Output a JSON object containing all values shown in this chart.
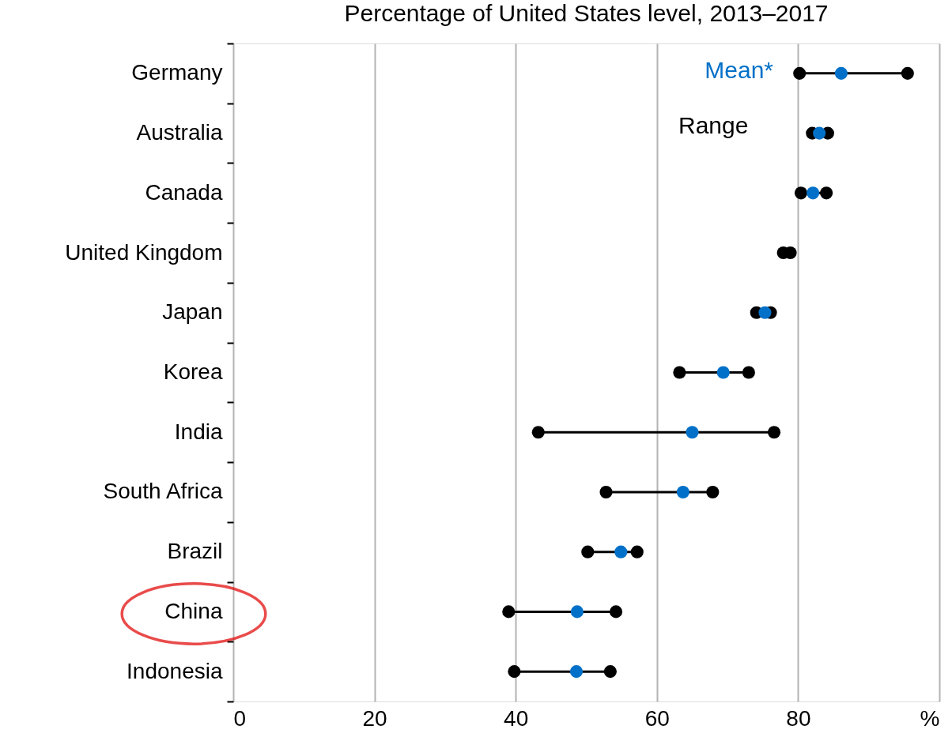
{
  "chart_data": {
    "type": "scatter",
    "orientation": "horizontal",
    "title": "Percentage of United States level, 2013–2017",
    "categories": [
      "Germany",
      "Australia",
      "Canada",
      "United Kingdom",
      "Japan",
      "Korea",
      "India",
      "South Africa",
      "Brazil",
      "China",
      "Indonesia"
    ],
    "series": [
      {
        "name": "Mean*",
        "color": "#0070c8",
        "values": [
          86.1,
          83.0,
          82.1,
          null,
          75.3,
          69.4,
          65.0,
          63.7,
          54.9,
          48.7,
          48.6
        ]
      },
      {
        "name": "Range",
        "color": "#000000",
        "values": [
          80.2,
          82.0,
          80.4,
          77.9,
          74.1,
          63.2,
          43.2,
          52.8,
          50.2,
          39.0,
          39.8
        ]
      },
      {
        "name": null,
        "color": "#000000",
        "values": [
          95.5,
          84.2,
          84.0,
          78.9,
          76.1,
          73.0,
          76.6,
          67.9,
          57.2,
          54.2,
          53.4
        ]
      }
    ],
    "xlim": [
      0,
      100
    ],
    "xticks": [
      0,
      20,
      40,
      60,
      80,
      {
        "value": 100,
        "label": "%"
      }
    ],
    "grid": "x",
    "legend": "top right",
    "marker": "circle"
  }
}
